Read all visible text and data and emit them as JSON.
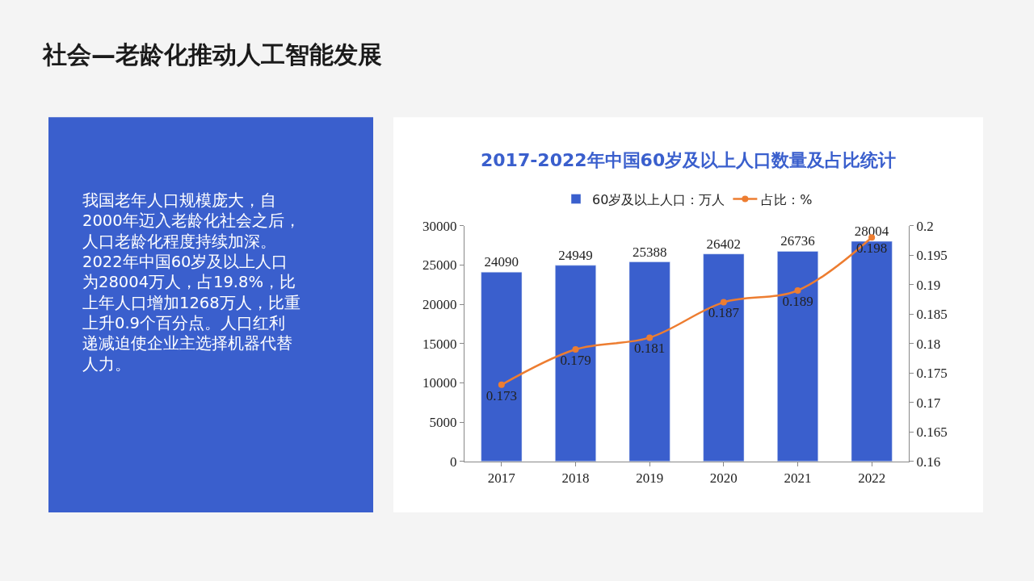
{
  "chart_data": [
    {
      "type": "other",
      "title": "社会—老龄化推动人工智能发展",
      "annotations": [
        "我国老年人口规模庞大，自2000年迈入老龄化社会之后，人口老龄化程度持续加深。2022年中国60岁及以上人口为28004万人，占19.8%，比上年人口增加1268万人，比重上升0.9个百分点。人口红利递减迫使企业主选择机器代替人力。"
      ]
    },
    {
      "type": "bar",
      "title": "2017-2022年中国60岁及以上人口数量及占比统计",
      "categories": [
        "2017",
        "2018",
        "2019",
        "2020",
        "2021",
        "2022"
      ],
      "series": [
        {
          "name": "60岁及以上人口：万人",
          "color": "#3a5fcd",
          "values": [
            24090,
            24949,
            25388,
            26402,
            26736,
            28004
          ]
        },
        {
          "name": "占比：%",
          "type": "line",
          "axis": "y2",
          "color": "#ed7d31",
          "values": [
            0.173,
            0.179,
            0.181,
            0.187,
            0.189,
            0.198
          ]
        }
      ],
      "ylim": [
        0,
        30000
      ],
      "yticks": [
        0,
        5000,
        10000,
        15000,
        20000,
        25000,
        30000
      ],
      "y2lim": [
        0.16,
        0.2
      ],
      "y2ticks": [
        0.16,
        0.165,
        0.17,
        0.175,
        0.18,
        0.185,
        0.19,
        0.195,
        0.2
      ],
      "data_labels": true,
      "legend": "top",
      "marker": "circle",
      "line_style": "solid"
    }
  ]
}
